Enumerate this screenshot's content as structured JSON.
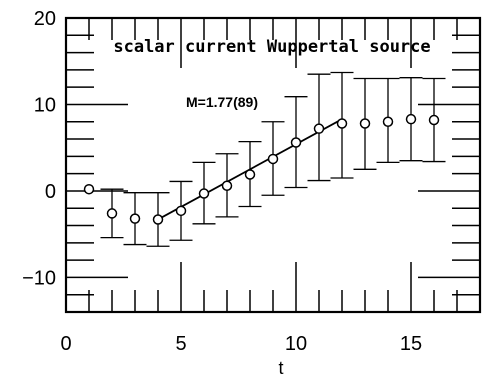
{
  "chart_data": {
    "type": "scatter",
    "title": "scalar current Wuppertal source",
    "xlabel": "t",
    "ylabel": "",
    "xlim": [
      0,
      18
    ],
    "ylim": [
      -14,
      20
    ],
    "grid": false,
    "x_ticks": [
      0,
      5,
      10,
      15
    ],
    "y_ticks": [
      -10,
      0,
      10,
      20
    ],
    "x_tick_labels": [
      "0",
      "5",
      "10",
      "15"
    ],
    "y_tick_labels": [
      "−10",
      "0",
      "10",
      "20"
    ],
    "annotation": "M=1.77(89)",
    "series": [
      {
        "marker": "open-circle",
        "x": [
          1,
          2,
          3,
          4,
          5,
          6,
          7,
          8,
          9,
          10,
          11,
          12,
          13,
          14,
          15,
          16
        ],
        "y": [
          0.2,
          -2.6,
          -3.2,
          -3.3,
          -2.3,
          -0.3,
          0.6,
          1.9,
          3.7,
          5.6,
          7.2,
          7.8,
          7.8,
          8.0,
          8.3,
          8.2
        ],
        "err_low": [
          0.2,
          2.8,
          3.0,
          3.1,
          3.4,
          3.5,
          3.6,
          3.7,
          4.2,
          5.2,
          6.0,
          6.3,
          5.3,
          4.7,
          4.8,
          4.8
        ],
        "err_high": [
          0.2,
          2.8,
          3.0,
          3.1,
          3.4,
          3.6,
          3.7,
          3.8,
          4.3,
          5.3,
          6.3,
          5.9,
          5.2,
          5.0,
          4.8,
          4.8
        ]
      }
    ],
    "fit_line": {
      "x": [
        4,
        12
      ],
      "y": [
        -3.3,
        8.3
      ]
    },
    "style": {
      "axis_color": "#000000",
      "line_color": "#000000"
    }
  }
}
